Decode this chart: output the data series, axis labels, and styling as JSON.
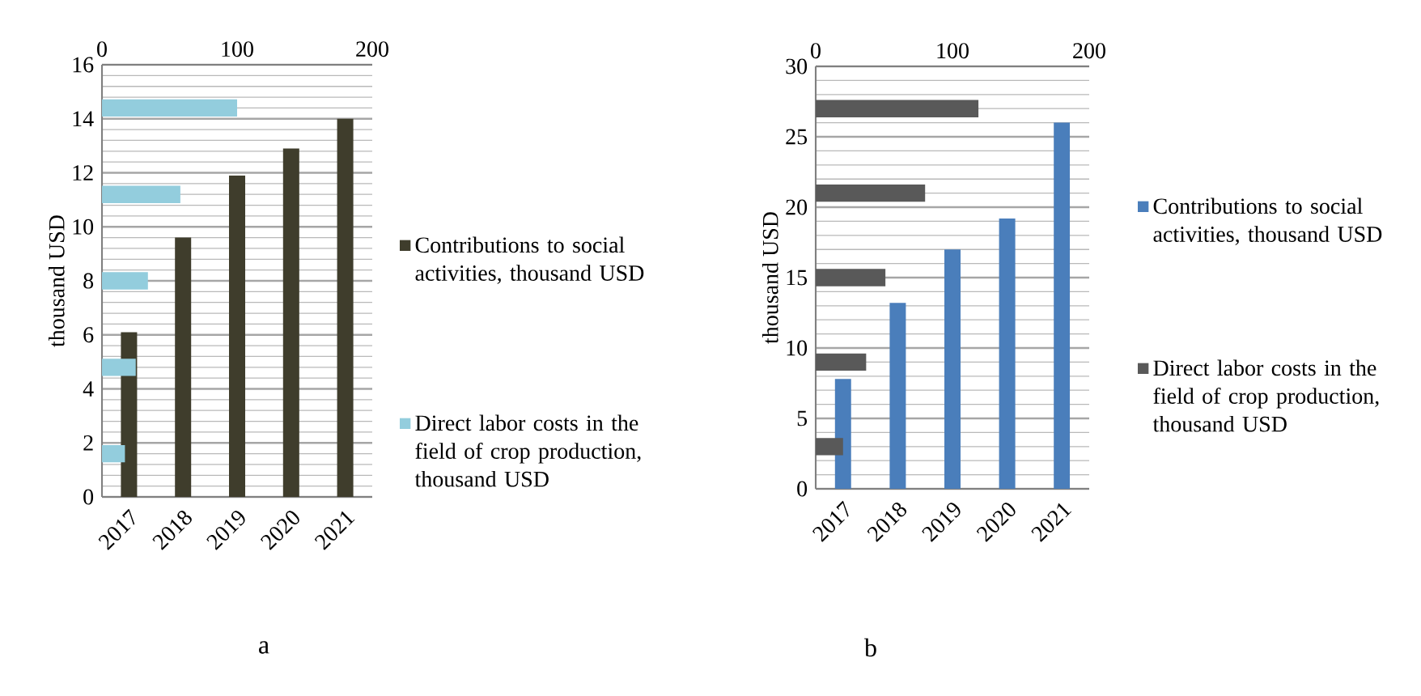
{
  "chart_data": [
    {
      "type": "bar",
      "categories": [
        "2017",
        "2018",
        "2019",
        "2020",
        "2021"
      ],
      "ylabel": "thousand USD",
      "ylim": [
        0,
        16
      ],
      "yticks": [
        0,
        2,
        4,
        6,
        8,
        10,
        12,
        14,
        16
      ],
      "grid": "y",
      "legend": "right",
      "series": [
        {
          "name": "Contributions to social activities, thousand USD",
          "color": "#3f3d2c",
          "values": [
            6.1,
            9.6,
            11.9,
            12.9,
            14.0
          ]
        }
      ],
      "annotations": [
        "a"
      ]
    },
    {
      "type": "bar",
      "orientation": "horizontal",
      "categories": [
        null,
        null,
        null,
        null,
        null
      ],
      "xlim": [
        0,
        200
      ],
      "xticks": [
        0,
        100,
        200
      ],
      "tick_labels": "x",
      "legend": "right",
      "series": [
        {
          "name": "Direct labor costs in the field of crop production, thousand USD",
          "color": "#93cddd",
          "values": [
            100,
            58,
            34,
            25,
            17
          ]
        }
      ]
    },
    {
      "type": "bar",
      "categories": [
        "2017",
        "2018",
        "2019",
        "2020",
        "2021"
      ],
      "ylabel": "thousand USD",
      "ylim": [
        0,
        30
      ],
      "yticks": [
        0,
        5,
        10,
        15,
        20,
        25,
        30
      ],
      "grid": "y",
      "legend": "right",
      "series": [
        {
          "name": "Contributions to social activities, thousand USD",
          "color": "#4a7ebb",
          "values": [
            7.8,
            13.2,
            17.0,
            19.2,
            26.0
          ]
        }
      ],
      "annotations": [
        "b"
      ]
    },
    {
      "type": "bar",
      "orientation": "horizontal",
      "categories": [
        null,
        null,
        null,
        null,
        null
      ],
      "xlim": [
        0,
        200
      ],
      "xticks": [
        0,
        100,
        200
      ],
      "tick_labels": "x",
      "legend": "right",
      "series": [
        {
          "name": "Direct labor costs in the field of crop production, thousand USD",
          "color": "#595959",
          "values": [
            119,
            80,
            51,
            37,
            20
          ]
        }
      ]
    }
  ]
}
